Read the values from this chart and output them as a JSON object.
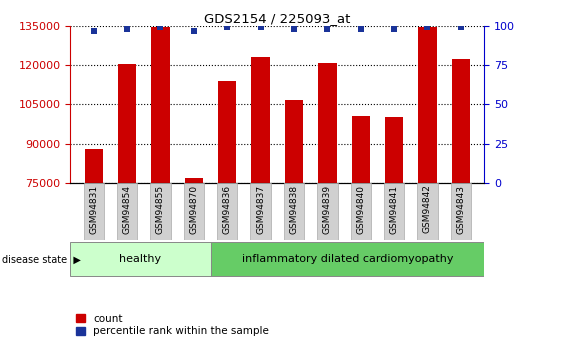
{
  "title": "GDS2154 / 225093_at",
  "samples": [
    "GSM94831",
    "GSM94854",
    "GSM94855",
    "GSM94870",
    "GSM94836",
    "GSM94837",
    "GSM94838",
    "GSM94839",
    "GSM94840",
    "GSM94841",
    "GSM94842",
    "GSM94843"
  ],
  "counts": [
    88000,
    120500,
    134500,
    77000,
    114000,
    123000,
    106500,
    121000,
    100500,
    100000,
    134500,
    122500
  ],
  "percentiles": [
    97,
    98,
    99,
    97,
    99,
    99,
    98,
    98,
    98,
    98,
    99,
    99
  ],
  "bar_color": "#cc0000",
  "dot_color": "#1a3399",
  "ylim_left": [
    75000,
    135000
  ],
  "yticks_left": [
    75000,
    90000,
    105000,
    120000,
    135000
  ],
  "ylim_right": [
    0,
    100
  ],
  "yticks_right": [
    0,
    25,
    50,
    75,
    100
  ],
  "healthy_count": 4,
  "healthy_label": "healthy",
  "disease_label": "inflammatory dilated cardiomyopathy",
  "disease_state_label": "disease state",
  "healthy_color": "#ccffcc",
  "disease_color": "#66cc66",
  "label_box_color": "#d0d0d0",
  "legend_count_label": "count",
  "legend_percentile_label": "percentile rank within the sample",
  "left_axis_color": "#cc0000",
  "right_axis_color": "#0000cc",
  "bar_width": 0.55
}
